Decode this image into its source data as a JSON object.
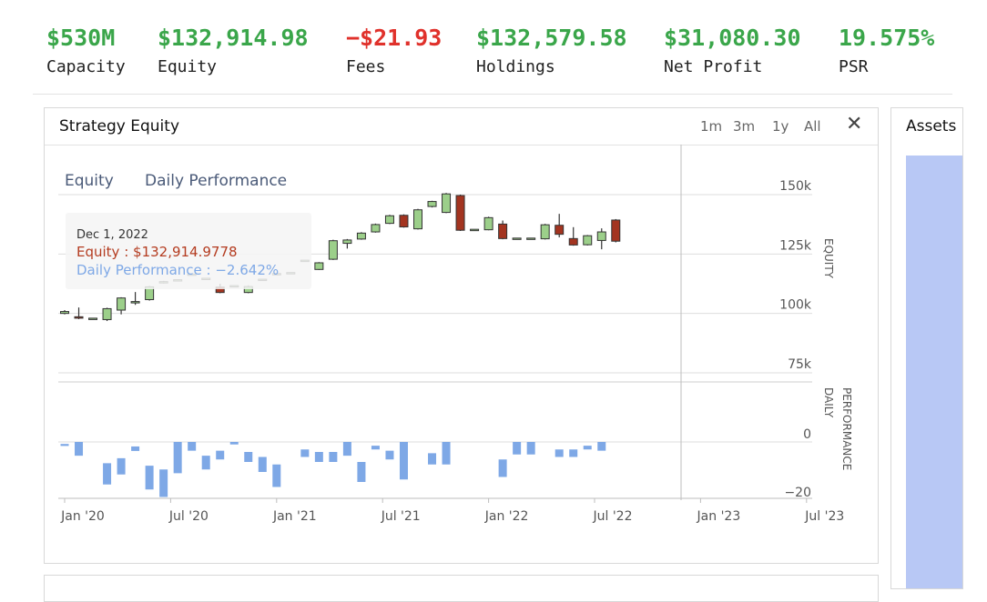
{
  "stats": [
    {
      "value": "$530M",
      "label": "Capacity",
      "color": "#3aa64a"
    },
    {
      "value": "$132,914.98",
      "label": "Equity",
      "color": "#3aa64a"
    },
    {
      "value": "−$21.93",
      "label": "Fees",
      "color": "#e0312b"
    },
    {
      "value": "$132,579.58",
      "label": "Holdings",
      "color": "#3aa64a"
    },
    {
      "value": "$31,080.30",
      "label": "Net Profit",
      "color": "#3aa64a"
    },
    {
      "value": "19.575%",
      "label": "PSR",
      "color": "#3aa64a"
    }
  ],
  "panel": {
    "title": "Strategy Equity",
    "ranges": [
      "1m",
      "3m",
      "1y",
      "All"
    ],
    "close_icon": "close-icon"
  },
  "side_panel": {
    "title": "Assets"
  },
  "chart_data": {
    "type": "candlestick+bar",
    "legend": [
      "Equity",
      "Daily Performance"
    ],
    "x_ticks": [
      "Jan '20",
      "Jul '20",
      "Jan '21",
      "Jul '21",
      "Jan '22",
      "Jul '22",
      "Jan '23",
      "Jul '23"
    ],
    "equity_axis": {
      "label": "EQUITY",
      "ticks": [
        "150k",
        "125k",
        "100k",
        "75k"
      ],
      "range": [
        75000,
        150000
      ]
    },
    "daily_axis": {
      "label": "DAILY PERFORMANCE",
      "ticks": [
        "0",
        "−20"
      ],
      "range": [
        -20,
        0
      ]
    },
    "tooltip": {
      "date": "Dec 1, 2022",
      "equity": "Equity : $132,914.9778",
      "daily": "Daily Performance : −2.642%"
    },
    "colors": {
      "up": "#9ccf8a",
      "down": "#a33420",
      "daily": "#7ea8e6"
    },
    "candles": [
      {
        "x": 0.0,
        "o": 100000,
        "c": 100800,
        "h": 101400,
        "l": 99600
      },
      {
        "x": 0.8,
        "o": 98600,
        "c": 98000,
        "h": 102500,
        "l": 97600
      },
      {
        "x": 1.6,
        "o": 98000,
        "c": 98000,
        "h": 98000,
        "l": 98000
      },
      {
        "x": 2.4,
        "o": 97400,
        "c": 102000,
        "h": 102400,
        "l": 96800
      },
      {
        "x": 3.2,
        "o": 101400,
        "c": 106500,
        "h": 106800,
        "l": 99600
      },
      {
        "x": 4.0,
        "o": 105000,
        "c": 105000,
        "h": 109000,
        "l": 103600
      },
      {
        "x": 4.8,
        "o": 105800,
        "c": 111200,
        "h": 111600,
        "l": 105400
      },
      {
        "x": 5.6,
        "o": 112800,
        "c": 113400,
        "h": 113700,
        "l": 112600
      },
      {
        "x": 6.4,
        "o": 114200,
        "c": 114200,
        "h": 114200,
        "l": 114200
      },
      {
        "x": 7.2,
        "o": 116600,
        "c": 116600,
        "h": 116600,
        "l": 116600
      },
      {
        "x": 8.0,
        "o": 114800,
        "c": 114800,
        "h": 114800,
        "l": 114800
      },
      {
        "x": 8.8,
        "o": 111100,
        "c": 108800,
        "h": 112500,
        "l": 108500
      },
      {
        "x": 9.6,
        "o": 111700,
        "c": 111700,
        "h": 111700,
        "l": 111700
      },
      {
        "x": 10.4,
        "o": 108800,
        "c": 111300,
        "h": 111800,
        "l": 108500
      },
      {
        "x": 11.2,
        "o": 114400,
        "c": 114400,
        "h": 114400,
        "l": 114400
      },
      {
        "x": 12.0,
        "o": 116800,
        "c": 116800,
        "h": 116800,
        "l": 116800
      },
      {
        "x": 12.8,
        "o": 117200,
        "c": 117200,
        "h": 117200,
        "l": 117200
      },
      {
        "x": 13.6,
        "o": 122400,
        "c": 122400,
        "h": 122400,
        "l": 122400
      },
      {
        "x": 14.4,
        "o": 118500,
        "c": 121300,
        "h": 121600,
        "l": 118300
      },
      {
        "x": 15.2,
        "o": 122800,
        "c": 130600,
        "h": 131000,
        "l": 122500
      },
      {
        "x": 16.0,
        "o": 129500,
        "c": 130900,
        "h": 131300,
        "l": 127300
      },
      {
        "x": 16.8,
        "o": 131300,
        "c": 133800,
        "h": 134200,
        "l": 131000
      },
      {
        "x": 17.6,
        "o": 134300,
        "c": 137400,
        "h": 137800,
        "l": 134000
      },
      {
        "x": 18.4,
        "o": 137900,
        "c": 141100,
        "h": 141500,
        "l": 137600
      },
      {
        "x": 19.2,
        "o": 141300,
        "c": 136400,
        "h": 141700,
        "l": 136100
      },
      {
        "x": 20.0,
        "o": 135600,
        "c": 143600,
        "h": 144000,
        "l": 135300
      },
      {
        "x": 20.8,
        "o": 145000,
        "c": 147100,
        "h": 147400,
        "l": 144600
      },
      {
        "x": 21.6,
        "o": 142500,
        "c": 150300,
        "h": 150700,
        "l": 142200
      },
      {
        "x": 22.4,
        "o": 149600,
        "c": 135000,
        "h": 150000,
        "l": 134700
      },
      {
        "x": 23.2,
        "o": 135400,
        "c": 135400,
        "h": 135400,
        "l": 135400
      },
      {
        "x": 24.0,
        "o": 135200,
        "c": 140300,
        "h": 140700,
        "l": 135000
      },
      {
        "x": 24.8,
        "o": 137600,
        "c": 131500,
        "h": 139100,
        "l": 131200
      },
      {
        "x": 25.6,
        "o": 131700,
        "c": 131700,
        "h": 131700,
        "l": 131700
      },
      {
        "x": 26.4,
        "o": 131700,
        "c": 131700,
        "h": 131700,
        "l": 131700
      },
      {
        "x": 27.2,
        "o": 131400,
        "c": 137300,
        "h": 137700,
        "l": 131100
      },
      {
        "x": 28.0,
        "o": 137100,
        "c": 133300,
        "h": 141900,
        "l": 132000
      },
      {
        "x": 28.8,
        "o": 131500,
        "c": 128800,
        "h": 136300,
        "l": 128500
      },
      {
        "x": 29.6,
        "o": 128900,
        "c": 132700,
        "h": 133000,
        "l": 128600
      },
      {
        "x": 30.4,
        "o": 130700,
        "c": 134300,
        "h": 135800,
        "l": 127000
      },
      {
        "x": 31.2,
        "o": 139300,
        "c": 130400,
        "h": 139700,
        "l": 129900
      }
    ],
    "daily": [
      {
        "x": 0.0,
        "v": 0.8
      },
      {
        "x": 0.8,
        "v": -5.5
      },
      {
        "x": 2.4,
        "v": 8.5
      },
      {
        "x": 3.2,
        "v": 6.5
      },
      {
        "x": 4.0,
        "v": 1.8
      },
      {
        "x": 4.8,
        "v": 9.5
      },
      {
        "x": 5.6,
        "v": 11.0
      },
      {
        "x": 6.4,
        "v": -12.5
      },
      {
        "x": 7.2,
        "v": -3.5
      },
      {
        "x": 8.0,
        "v": 5.5
      },
      {
        "x": 8.8,
        "v": 3.5
      },
      {
        "x": 9.6,
        "v": -1.0
      },
      {
        "x": 10.4,
        "v": 4.0
      },
      {
        "x": 11.2,
        "v": 6.0
      },
      {
        "x": 12.0,
        "v": 9.0
      },
      {
        "x": 13.6,
        "v": 3.0
      },
      {
        "x": 14.4,
        "v": 4.0
      },
      {
        "x": 15.2,
        "v": 4.0
      },
      {
        "x": 16.0,
        "v": -5.5
      },
      {
        "x": 16.8,
        "v": 8.0
      },
      {
        "x": 17.6,
        "v": 1.5
      },
      {
        "x": 18.4,
        "v": 3.5
      },
      {
        "x": 19.2,
        "v": -15.0
      },
      {
        "x": 20.8,
        "v": 4.5
      },
      {
        "x": 21.6,
        "v": -9.0
      },
      {
        "x": 24.8,
        "v": 7.0
      },
      {
        "x": 25.6,
        "v": -5.0
      },
      {
        "x": 26.4,
        "v": -5.0
      },
      {
        "x": 28.0,
        "v": 3.0
      },
      {
        "x": 28.8,
        "v": 3.0
      },
      {
        "x": 29.6,
        "v": 1.5
      },
      {
        "x": 30.4,
        "v": -3.5
      }
    ]
  }
}
